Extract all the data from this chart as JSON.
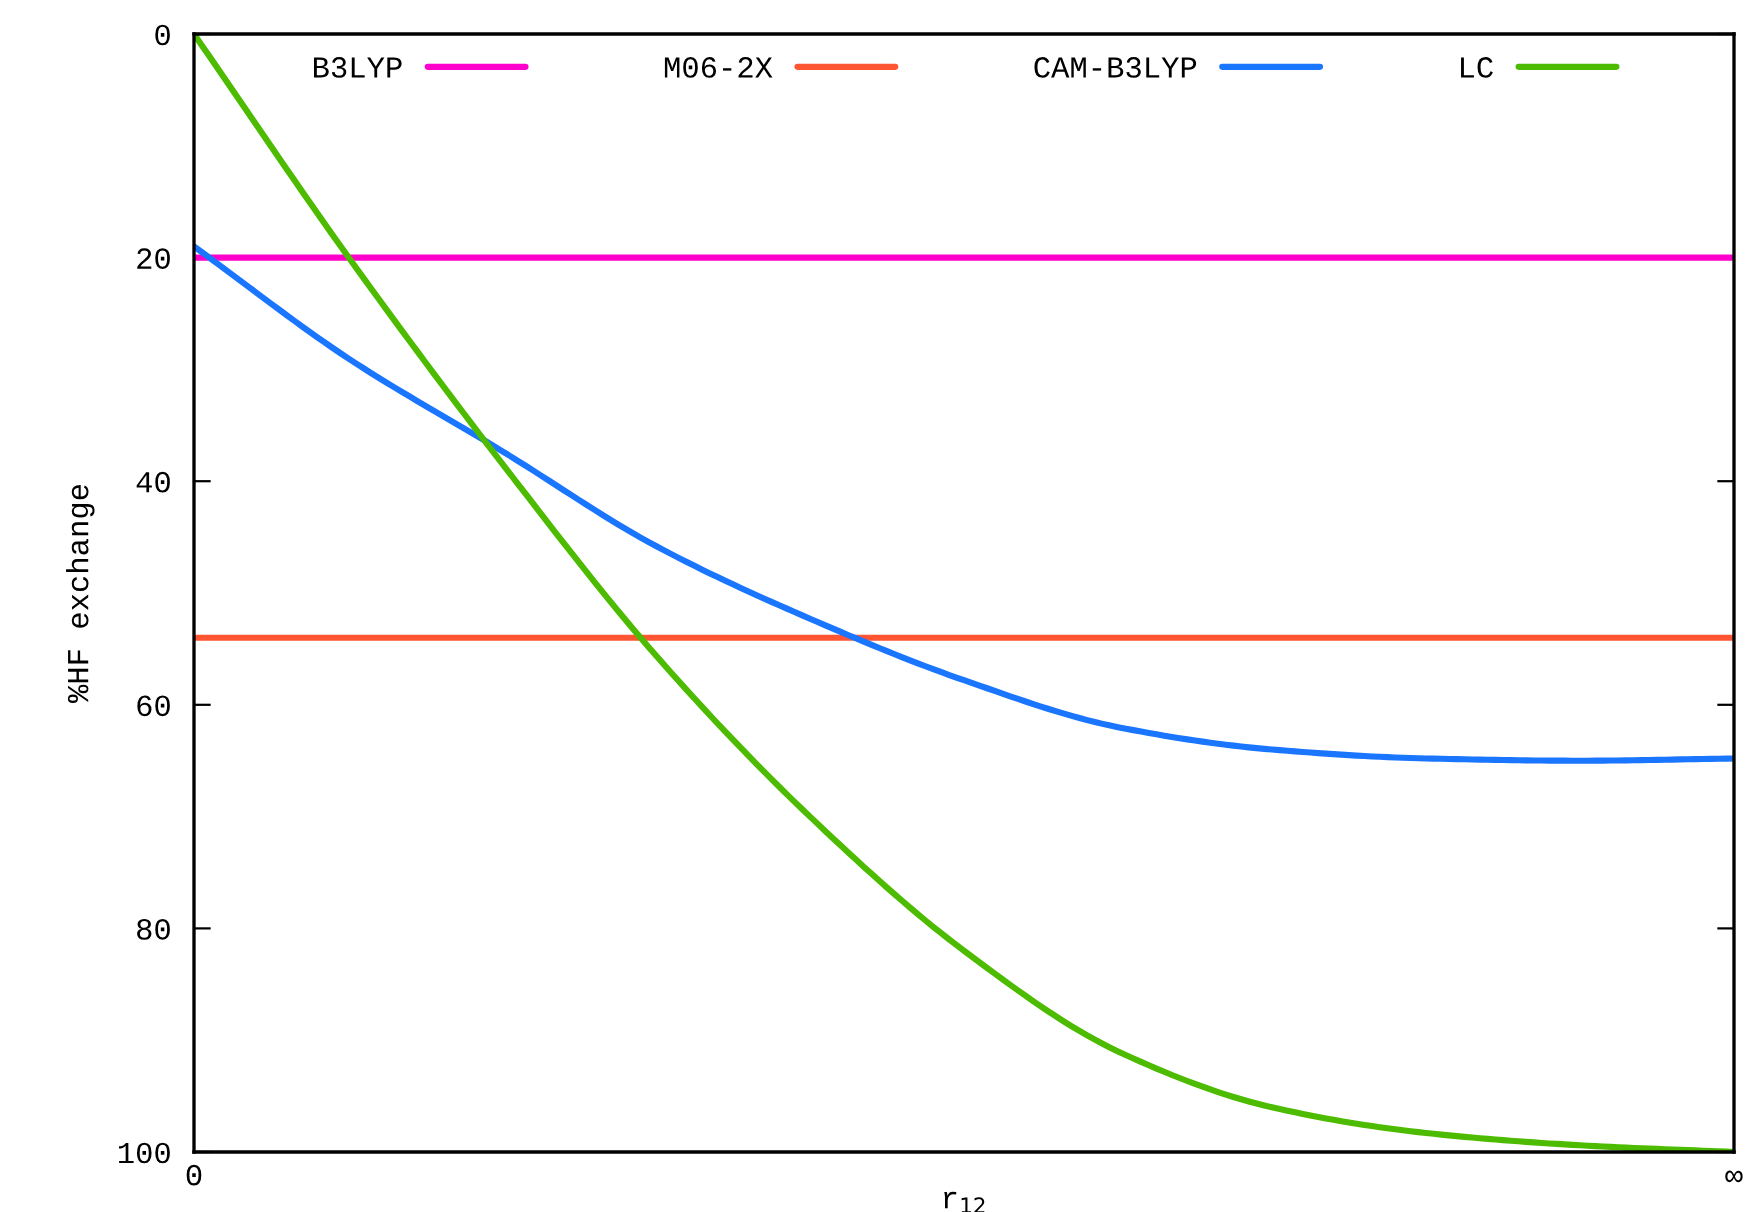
{
  "chart_data": {
    "type": "line",
    "xlabel": "r$_{12}$",
    "ylabel": "%HF exchange",
    "categories": [
      "0",
      null,
      null,
      null,
      null,
      null,
      null,
      null,
      null,
      null,
      "∞"
    ],
    "ylim": [
      100,
      0
    ],
    "yticks": [
      0,
      20,
      40,
      60,
      80,
      100
    ],
    "legend": "top",
    "line_style": "solid",
    "series": [
      {
        "name": "B3LYP",
        "color": "#ff00cc",
        "values": [
          20,
          20,
          20,
          20,
          20,
          20,
          20,
          20,
          20,
          20,
          20
        ]
      },
      {
        "name": "M06-2X",
        "color": "#ff5533",
        "values": [
          54,
          54,
          54,
          54,
          54,
          54,
          54,
          54,
          54,
          54,
          54
        ]
      },
      {
        "name": "CAM-B3LYP",
        "color": "#1a75ff",
        "values": [
          19,
          29,
          37.3,
          45.8,
          52.3,
          57.8,
          62,
          64,
          64.8,
          65,
          64.8
        ]
      },
      {
        "name": "LC",
        "color": "#4dbb00",
        "values": [
          0,
          19.9,
          38.4,
          55.6,
          70,
          82,
          91,
          96,
          98.3,
          99.4,
          100
        ]
      }
    ]
  }
}
